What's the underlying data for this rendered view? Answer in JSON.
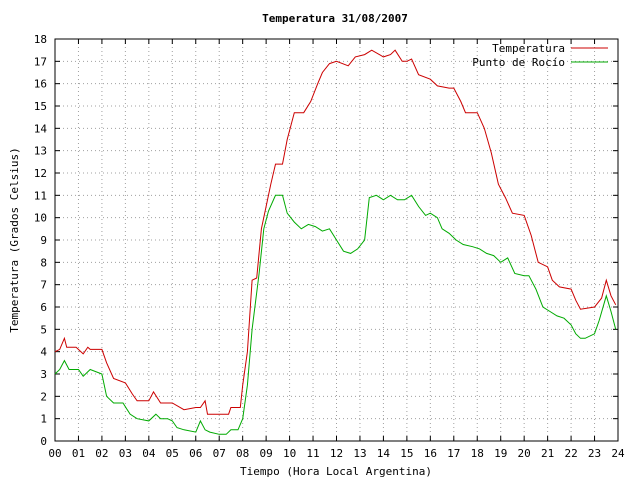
{
  "chart_data": {
    "type": "line",
    "title": "Temperatura 31/08/2007",
    "xlabel": "Tiempo (Hora Local Argentina)",
    "ylabel": "Temperatura (Grados Celsius)",
    "xlim": [
      0,
      24
    ],
    "ylim": [
      0,
      18
    ],
    "grid": true,
    "legend_position": "top-right",
    "x_ticks": [
      "00",
      "01",
      "02",
      "03",
      "04",
      "05",
      "06",
      "07",
      "08",
      "09",
      "10",
      "11",
      "12",
      "13",
      "14",
      "15",
      "16",
      "17",
      "18",
      "19",
      "20",
      "21",
      "22",
      "23",
      "24"
    ],
    "y_ticks": [
      "0",
      "1",
      "2",
      "3",
      "4",
      "5",
      "6",
      "7",
      "8",
      "9",
      "10",
      "11",
      "12",
      "13",
      "14",
      "15",
      "16",
      "17",
      "18"
    ],
    "series": [
      {
        "name": "Temperatura",
        "color": "#cc0000",
        "points": [
          [
            0.0,
            4.0
          ],
          [
            0.2,
            4.1
          ],
          [
            0.4,
            4.6
          ],
          [
            0.5,
            4.2
          ],
          [
            0.9,
            4.2
          ],
          [
            1.2,
            3.9
          ],
          [
            1.4,
            4.2
          ],
          [
            1.5,
            4.1
          ],
          [
            2.0,
            4.1
          ],
          [
            2.2,
            3.5
          ],
          [
            2.5,
            2.8
          ],
          [
            3.0,
            2.6
          ],
          [
            3.3,
            2.1
          ],
          [
            3.5,
            1.8
          ],
          [
            4.0,
            1.8
          ],
          [
            4.2,
            2.2
          ],
          [
            4.5,
            1.7
          ],
          [
            5.0,
            1.7
          ],
          [
            5.5,
            1.4
          ],
          [
            6.0,
            1.5
          ],
          [
            6.2,
            1.5
          ],
          [
            6.4,
            1.8
          ],
          [
            6.5,
            1.2
          ],
          [
            7.0,
            1.2
          ],
          [
            7.4,
            1.2
          ],
          [
            7.5,
            1.5
          ],
          [
            7.9,
            1.5
          ],
          [
            8.0,
            2.5
          ],
          [
            8.2,
            4.0
          ],
          [
            8.4,
            7.2
          ],
          [
            8.6,
            7.3
          ],
          [
            8.8,
            9.5
          ],
          [
            9.0,
            10.5
          ],
          [
            9.2,
            11.5
          ],
          [
            9.4,
            12.4
          ],
          [
            9.7,
            12.4
          ],
          [
            9.9,
            13.5
          ],
          [
            10.2,
            14.7
          ],
          [
            10.6,
            14.7
          ],
          [
            10.9,
            15.2
          ],
          [
            11.2,
            16.0
          ],
          [
            11.4,
            16.5
          ],
          [
            11.7,
            16.9
          ],
          [
            12.0,
            17.0
          ],
          [
            12.5,
            16.8
          ],
          [
            12.8,
            17.2
          ],
          [
            13.2,
            17.3
          ],
          [
            13.5,
            17.5
          ],
          [
            14.0,
            17.2
          ],
          [
            14.3,
            17.3
          ],
          [
            14.5,
            17.5
          ],
          [
            14.8,
            17.0
          ],
          [
            15.0,
            17.0
          ],
          [
            15.2,
            17.1
          ],
          [
            15.5,
            16.4
          ],
          [
            16.0,
            16.2
          ],
          [
            16.3,
            15.9
          ],
          [
            16.8,
            15.8
          ],
          [
            17.0,
            15.8
          ],
          [
            17.3,
            15.2
          ],
          [
            17.5,
            14.7
          ],
          [
            18.0,
            14.7
          ],
          [
            18.3,
            14.0
          ],
          [
            18.6,
            12.9
          ],
          [
            18.9,
            11.5
          ],
          [
            19.2,
            10.9
          ],
          [
            19.5,
            10.2
          ],
          [
            20.0,
            10.1
          ],
          [
            20.3,
            9.2
          ],
          [
            20.6,
            8.0
          ],
          [
            21.0,
            7.8
          ],
          [
            21.2,
            7.2
          ],
          [
            21.5,
            6.9
          ],
          [
            22.0,
            6.8
          ],
          [
            22.2,
            6.3
          ],
          [
            22.4,
            5.9
          ],
          [
            23.0,
            6.0
          ],
          [
            23.3,
            6.4
          ],
          [
            23.5,
            7.2
          ],
          [
            23.7,
            6.5
          ],
          [
            23.9,
            6.1
          ]
        ]
      },
      {
        "name": "Punto de Rocío",
        "color": "#00aa00",
        "points": [
          [
            0.0,
            3.0
          ],
          [
            0.2,
            3.2
          ],
          [
            0.4,
            3.6
          ],
          [
            0.6,
            3.2
          ],
          [
            1.0,
            3.2
          ],
          [
            1.2,
            2.9
          ],
          [
            1.5,
            3.2
          ],
          [
            2.0,
            3.0
          ],
          [
            2.2,
            2.0
          ],
          [
            2.5,
            1.7
          ],
          [
            2.9,
            1.7
          ],
          [
            3.2,
            1.2
          ],
          [
            3.5,
            1.0
          ],
          [
            4.0,
            0.9
          ],
          [
            4.3,
            1.2
          ],
          [
            4.5,
            1.0
          ],
          [
            4.8,
            1.0
          ],
          [
            5.0,
            0.9
          ],
          [
            5.2,
            0.6
          ],
          [
            5.5,
            0.5
          ],
          [
            6.0,
            0.4
          ],
          [
            6.2,
            0.9
          ],
          [
            6.4,
            0.5
          ],
          [
            6.6,
            0.4
          ],
          [
            7.0,
            0.3
          ],
          [
            7.3,
            0.3
          ],
          [
            7.5,
            0.5
          ],
          [
            7.8,
            0.5
          ],
          [
            8.0,
            1.0
          ],
          [
            8.2,
            2.5
          ],
          [
            8.4,
            5.0
          ],
          [
            8.7,
            7.5
          ],
          [
            8.9,
            9.5
          ],
          [
            9.1,
            10.3
          ],
          [
            9.4,
            11.0
          ],
          [
            9.7,
            11.0
          ],
          [
            9.9,
            10.2
          ],
          [
            10.2,
            9.8
          ],
          [
            10.5,
            9.5
          ],
          [
            10.8,
            9.7
          ],
          [
            11.1,
            9.6
          ],
          [
            11.4,
            9.4
          ],
          [
            11.7,
            9.5
          ],
          [
            12.0,
            9.0
          ],
          [
            12.3,
            8.5
          ],
          [
            12.6,
            8.4
          ],
          [
            12.9,
            8.6
          ],
          [
            13.2,
            9.0
          ],
          [
            13.4,
            10.9
          ],
          [
            13.7,
            11.0
          ],
          [
            14.0,
            10.8
          ],
          [
            14.3,
            11.0
          ],
          [
            14.6,
            10.8
          ],
          [
            14.9,
            10.8
          ],
          [
            15.2,
            11.0
          ],
          [
            15.5,
            10.5
          ],
          [
            15.8,
            10.1
          ],
          [
            16.0,
            10.2
          ],
          [
            16.3,
            10.0
          ],
          [
            16.5,
            9.5
          ],
          [
            16.8,
            9.3
          ],
          [
            17.1,
            9.0
          ],
          [
            17.4,
            8.8
          ],
          [
            17.8,
            8.7
          ],
          [
            18.1,
            8.6
          ],
          [
            18.4,
            8.4
          ],
          [
            18.7,
            8.3
          ],
          [
            19.0,
            8.0
          ],
          [
            19.3,
            8.2
          ],
          [
            19.6,
            7.5
          ],
          [
            20.0,
            7.4
          ],
          [
            20.2,
            7.4
          ],
          [
            20.5,
            6.8
          ],
          [
            20.8,
            6.0
          ],
          [
            21.1,
            5.8
          ],
          [
            21.4,
            5.6
          ],
          [
            21.7,
            5.5
          ],
          [
            22.0,
            5.2
          ],
          [
            22.2,
            4.8
          ],
          [
            22.4,
            4.6
          ],
          [
            22.6,
            4.6
          ],
          [
            23.0,
            4.8
          ],
          [
            23.2,
            5.4
          ],
          [
            23.5,
            6.5
          ],
          [
            23.7,
            5.8
          ],
          [
            23.9,
            5.0
          ]
        ]
      }
    ]
  }
}
